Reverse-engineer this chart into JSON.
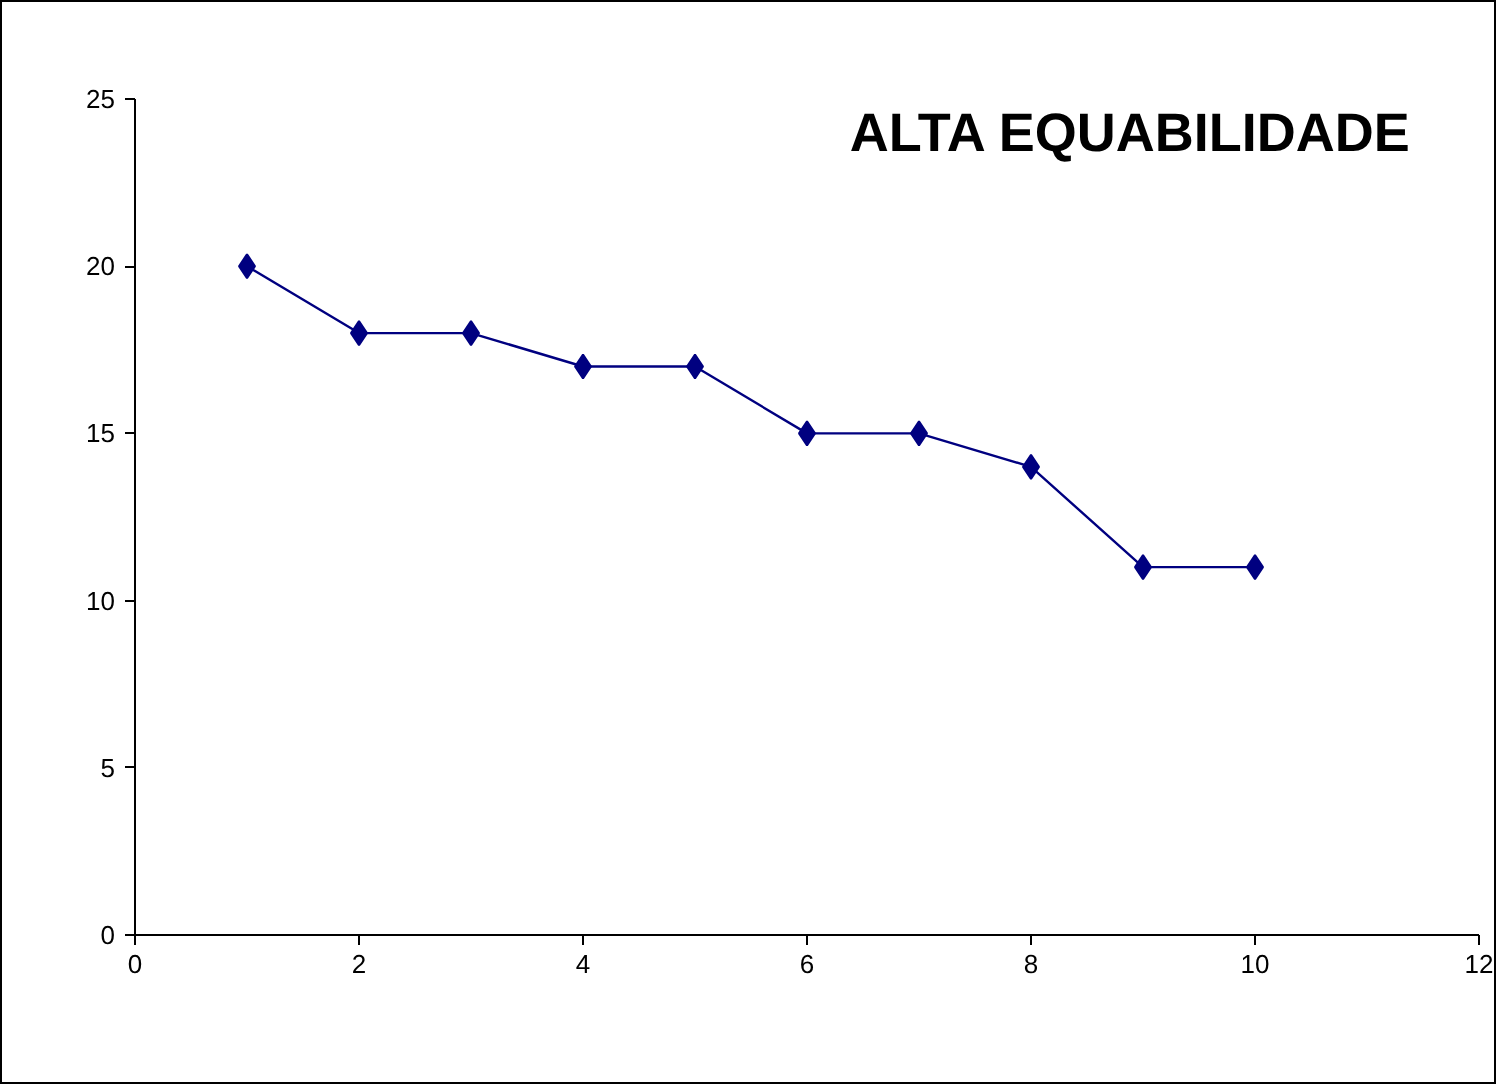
{
  "chart_data": {
    "type": "line",
    "title": "ALTA EQUABILIDADE",
    "x": [
      1,
      2,
      3,
      4,
      5,
      6,
      7,
      8,
      9,
      10
    ],
    "series": [
      {
        "color": "#000080",
        "values": [
          20,
          18,
          18,
          17,
          17,
          15,
          15,
          14,
          11,
          11
        ]
      }
    ],
    "xlim": [
      0,
      12
    ],
    "xticks": [
      0,
      2,
      4,
      6,
      8,
      10,
      12
    ],
    "ylim": [
      0,
      25
    ],
    "yticks": [
      0,
      5,
      10,
      15,
      20,
      25
    ],
    "grid": false,
    "marker": "diamond",
    "line_style": "solid"
  }
}
